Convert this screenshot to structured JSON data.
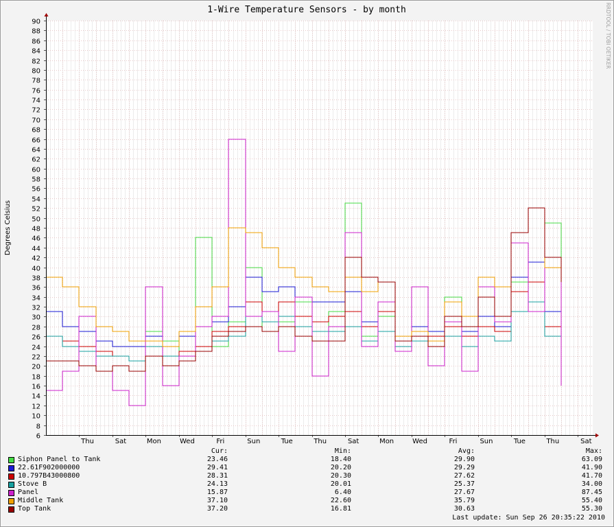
{
  "chart_data": {
    "type": "line",
    "title": "1-Wire Temperature Sensors - by month",
    "ylabel": "Degrees Celsius",
    "watermark": "RRDTOOL / TOBI OETIKER",
    "ylim": [
      6,
      90
    ],
    "y_ticks": [
      6,
      8,
      10,
      12,
      14,
      16,
      18,
      20,
      22,
      24,
      26,
      28,
      30,
      32,
      34,
      36,
      38,
      40,
      42,
      44,
      46,
      48,
      50,
      52,
      54,
      56,
      58,
      60,
      62,
      64,
      66,
      68,
      70,
      72,
      74,
      76,
      78,
      80,
      82,
      84,
      86,
      88,
      90
    ],
    "x_ticks": [
      "Thu",
      "Sat",
      "Mon",
      "Wed",
      "Fri",
      "Sun",
      "Tue",
      "Thu",
      "Sat",
      "Mon",
      "Wed",
      "Fri",
      "Sun",
      "Tue",
      "Thu",
      "Sat"
    ],
    "x_day_range": [
      0,
      31.4
    ],
    "x_tick_days": [
      2.0,
      4.0,
      6.0,
      8.0,
      10.0,
      12.0,
      14.0,
      16.0,
      18.0,
      20.0,
      22.0,
      24.0,
      26.0,
      28.0,
      30.0,
      32.0
    ],
    "grid": true,
    "legend_headers": {
      "cur": "Cur:",
      "min": "Min:",
      "avg": "Avg:",
      "max": "Max:"
    },
    "series": [
      {
        "name": "Siphon Panel to Tank",
        "color": "#44dd44",
        "cur": "23.46",
        "min": "18.40",
        "avg": "29.90",
        "max": "63.09",
        "daily": [
          26,
          24,
          23,
          22,
          22,
          21,
          27,
          25,
          22,
          46,
          24,
          29,
          40,
          27,
          29,
          33,
          27,
          31,
          53,
          26,
          30,
          26,
          36,
          27,
          34,
          28,
          30,
          29,
          37,
          33,
          49,
          30
        ]
      },
      {
        "name": "22.61F902000000",
        "color": "#1a1ad6",
        "cur": "29.41",
        "min": "20.20",
        "avg": "29.29",
        "max": "41.90",
        "daily": [
          31,
          28,
          27,
          25,
          24,
          24,
          26,
          24,
          26,
          28,
          29,
          32,
          38,
          35,
          36,
          34,
          33,
          33,
          35,
          29,
          33,
          26,
          28,
          27,
          30,
          27,
          30,
          28,
          38,
          41,
          31,
          29
        ]
      },
      {
        "name": "10.797B43000800",
        "color": "#cc0000",
        "cur": "28.31",
        "min": "20.30",
        "avg": "27.62",
        "max": "41.70",
        "daily": [
          26,
          25,
          24,
          23,
          22,
          21,
          24,
          22,
          23,
          24,
          27,
          28,
          33,
          31,
          33,
          30,
          29,
          30,
          31,
          28,
          31,
          25,
          27,
          26,
          28,
          26,
          28,
          27,
          35,
          37,
          28,
          28
        ]
      },
      {
        "name": "Stove B",
        "color": "#17a0a0",
        "cur": "24.13",
        "min": "20.01",
        "avg": "25.37",
        "max": "34.00",
        "daily": [
          26,
          24,
          23,
          22,
          22,
          21,
          24,
          22,
          22,
          23,
          25,
          26,
          30,
          29,
          30,
          28,
          27,
          27,
          28,
          25,
          27,
          24,
          25,
          24,
          26,
          24,
          26,
          25,
          31,
          33,
          26,
          24
        ]
      },
      {
        "name": "Panel",
        "color": "#cc22cc",
        "cur": "15.87",
        "min": "6.40",
        "avg": "27.67",
        "max": "87.45",
        "daily": [
          15,
          19,
          30,
          19,
          15,
          12,
          36,
          16,
          22,
          28,
          30,
          66,
          30,
          31,
          23,
          34,
          18,
          28,
          47,
          24,
          33,
          23,
          36,
          20,
          29,
          19,
          36,
          29,
          45,
          31,
          42,
          16
        ]
      },
      {
        "name": "Middle Tank",
        "color": "#f0a000",
        "cur": "37.10",
        "min": "22.60",
        "avg": "35.79",
        "max": "55.40",
        "daily": [
          38,
          36,
          32,
          28,
          27,
          25,
          25,
          24,
          27,
          32,
          36,
          48,
          47,
          44,
          40,
          38,
          36,
          35,
          38,
          35,
          37,
          26,
          27,
          25,
          33,
          30,
          38,
          36,
          47,
          52,
          40,
          37
        ]
      },
      {
        "name": "Top Tank",
        "color": "#990000",
        "cur": "37.20",
        "min": "16.81",
        "avg": "30.63",
        "max": "55.30",
        "daily": [
          21,
          21,
          20,
          19,
          20,
          19,
          22,
          20,
          21,
          23,
          26,
          27,
          28,
          27,
          28,
          26,
          25,
          25,
          42,
          38,
          37,
          25,
          26,
          24,
          30,
          28,
          34,
          30,
          47,
          52,
          42,
          37
        ]
      }
    ],
    "gap_days": [
      31.4,
      32.05
    ],
    "last_update": "Last update: Sun Sep 26 20:35:22 2010"
  }
}
